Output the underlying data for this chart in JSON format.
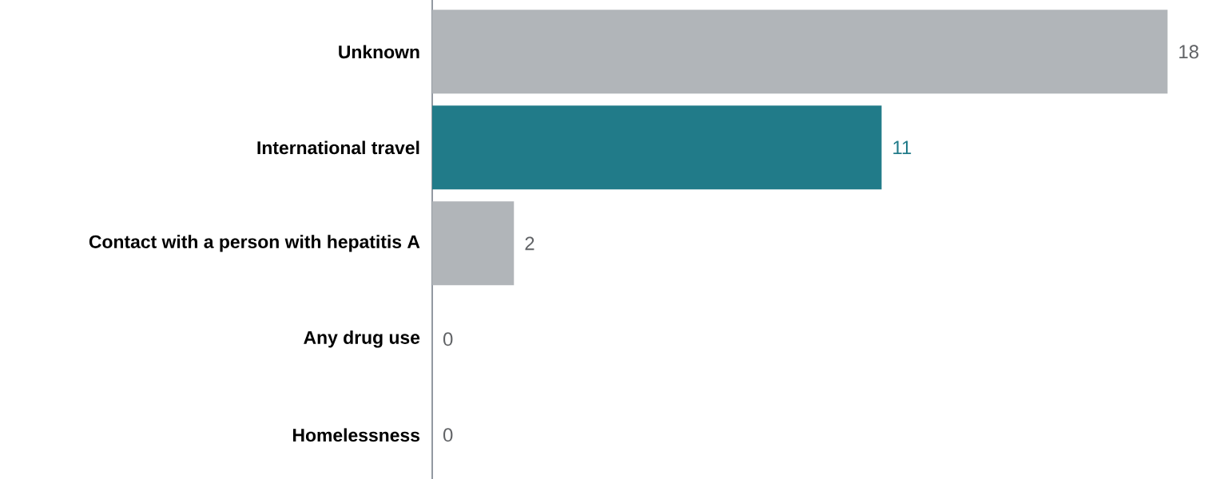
{
  "chart_data": {
    "type": "bar",
    "orientation": "horizontal",
    "relative": false,
    "data_labels": true,
    "categories": [
      "Unknown",
      "International travel",
      "Contact with a person with hepatitis A",
      "Any drug use",
      "Homelessness"
    ],
    "values": [
      18,
      11,
      2,
      0,
      0
    ],
    "colors": [
      "#b1b5b9",
      "#217b89",
      "#b1b5b9",
      "#b1b5b9",
      "#b1b5b9"
    ]
  }
}
